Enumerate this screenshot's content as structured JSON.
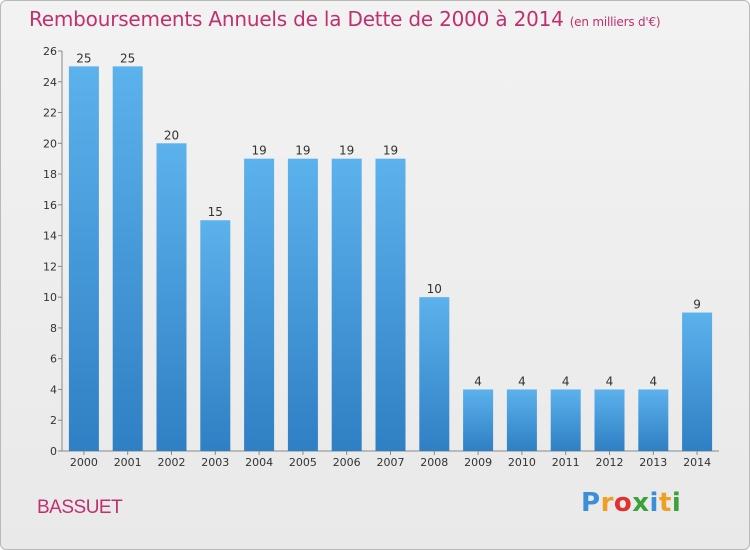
{
  "chart_data": {
    "type": "bar",
    "title": "Remboursements Annuels de la Dette de 2000 à 2014",
    "subtitle": "(en milliers d'€)",
    "categories": [
      "2000",
      "2001",
      "2002",
      "2003",
      "2004",
      "2005",
      "2006",
      "2007",
      "2008",
      "2009",
      "2010",
      "2011",
      "2012",
      "2013",
      "2014"
    ],
    "values": [
      25,
      25,
      20,
      15,
      19,
      19,
      19,
      19,
      10,
      4,
      4,
      4,
      4,
      4,
      9
    ],
    "ylim": [
      0,
      26
    ],
    "yticks": [
      0,
      2,
      4,
      6,
      8,
      10,
      12,
      14,
      16,
      18,
      20,
      22,
      24,
      26
    ],
    "xlabel": "",
    "ylabel": "",
    "grid": false,
    "bar_color": "#4a9fe0"
  },
  "commune": "BASSUET",
  "logo": {
    "letters": [
      "P",
      "r",
      "o",
      "x",
      "i",
      "t",
      "i"
    ],
    "colors": [
      "#3a8fd8",
      "#f0a020",
      "#e03030",
      "#3aa23a",
      "#3a8fd8",
      "#f0a020",
      "#3aa23a"
    ]
  }
}
